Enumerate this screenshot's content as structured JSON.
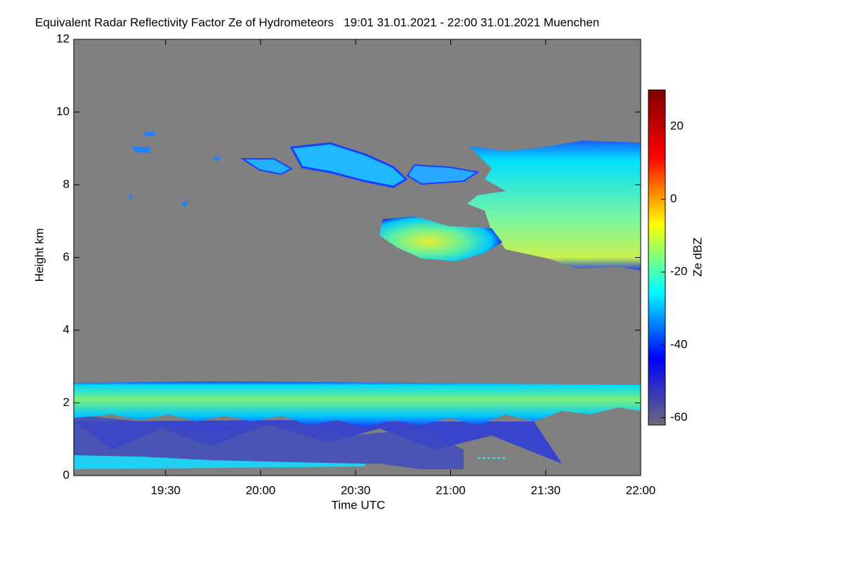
{
  "chart_data": {
    "type": "heatmap",
    "title": "Equivalent Radar Reflectivity Factor Ze of Hydrometeors   19:01 31.01.2021 - 22:00 31.01.2021 Muenchen",
    "x_label": "Time UTC",
    "y_label": "Height km",
    "colorbar_label": "Ze dBZ",
    "xlim": [
      1141,
      1320
    ],
    "xticks": [
      {
        "value": 1170,
        "label": "19:30"
      },
      {
        "value": 1200,
        "label": "20:00"
      },
      {
        "value": 1230,
        "label": "20:30"
      },
      {
        "value": 1260,
        "label": "21:00"
      },
      {
        "value": 1290,
        "label": "21:30"
      },
      {
        "value": 1320,
        "label": "22:00"
      }
    ],
    "ylim": [
      0,
      12
    ],
    "yticks": [
      0,
      2,
      4,
      6,
      8,
      10,
      12
    ],
    "clim": [
      -62,
      30
    ],
    "cticks": [
      -60,
      -40,
      -20,
      0,
      20
    ],
    "colormap": [
      "#6a6a7a",
      "#0000ff",
      "#00ffff",
      "#ffff00",
      "#ff0000",
      "#800000"
    ],
    "background": "#808080"
  }
}
